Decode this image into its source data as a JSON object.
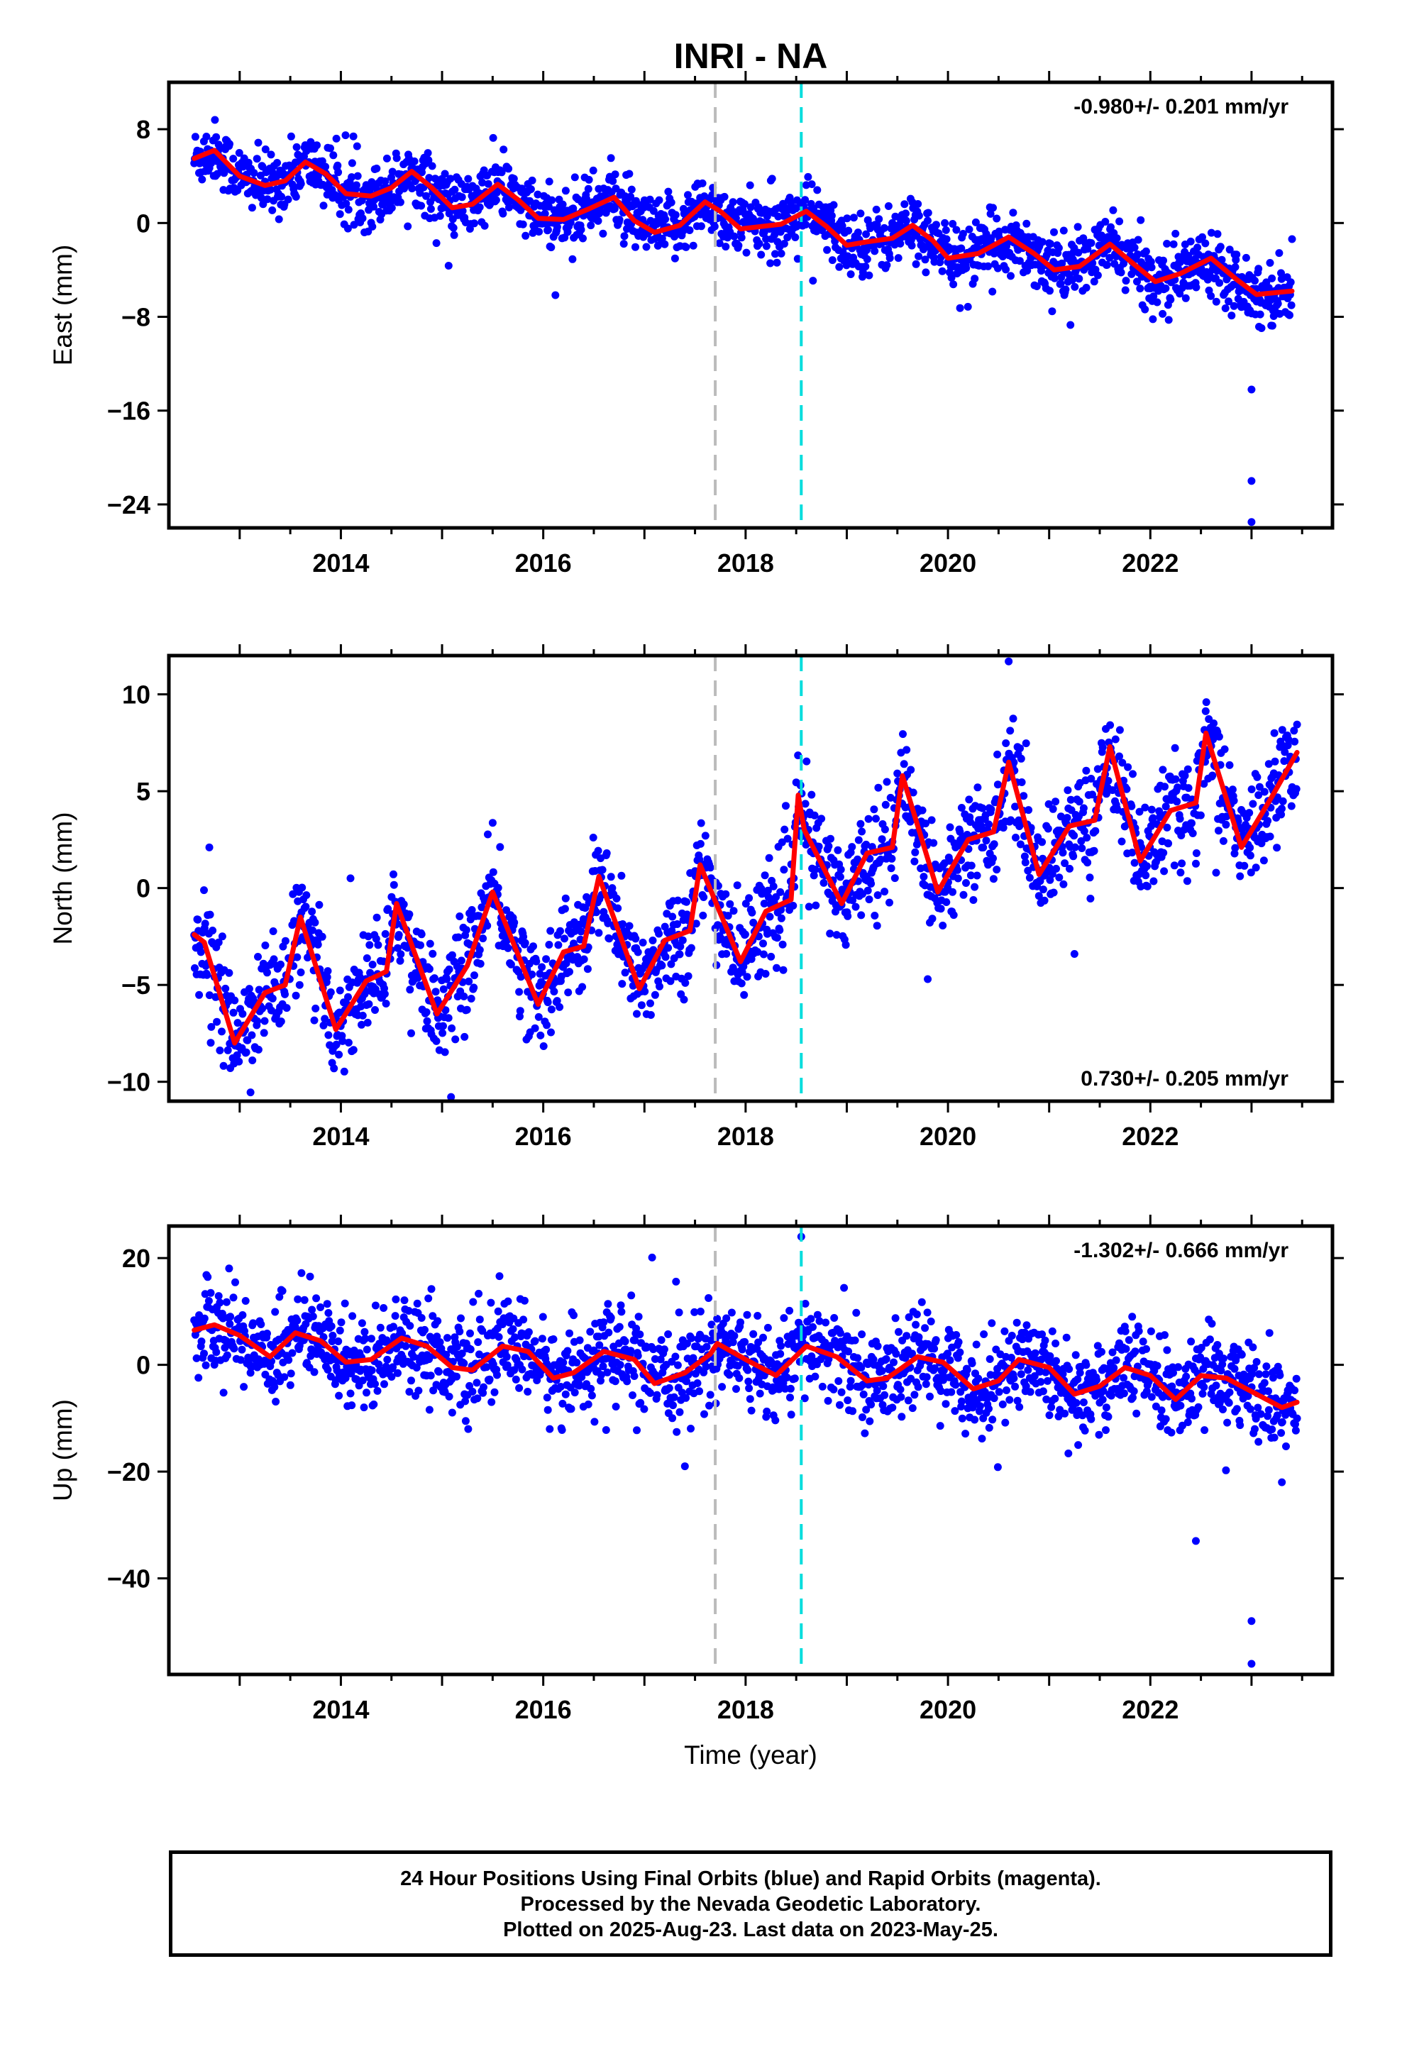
{
  "chart_data": {
    "type": "scatter",
    "title": "INRI - NA",
    "xlabel": "Time (year)",
    "x_tick_labels": [
      "2014",
      "2016",
      "2018",
      "2020",
      "2022"
    ],
    "xlim": [
      2012.3,
      2023.8
    ],
    "markers": [
      {
        "name": "gray-dashed-line",
        "x": 2017.7,
        "color": "#bbbbbb"
      },
      {
        "name": "cyan-dashed-line",
        "x": 2018.55,
        "color": "#00dddd"
      }
    ],
    "colors": {
      "points": "#0000ff",
      "model": "#ff0000"
    },
    "panels": [
      {
        "ylabel": "East (mm)",
        "rate_label": "-0.980+/- 0.201 mm/yr",
        "rate_position": "top-right",
        "ylim": [
          -26,
          12
        ],
        "yticks": [
          8,
          0,
          -8,
          -16,
          -24
        ],
        "y_tick_labels": [
          "8",
          "0",
          "−8",
          "−16",
          "−24"
        ],
        "model": {
          "x": [
            2012.55,
            2012.75,
            2013.0,
            2013.25,
            2013.45,
            2013.65,
            2013.85,
            2014.05,
            2014.3,
            2014.5,
            2014.7,
            2014.9,
            2015.1,
            2015.3,
            2015.55,
            2015.75,
            2015.95,
            2016.2,
            2016.45,
            2016.7,
            2016.9,
            2017.1,
            2017.35,
            2017.6,
            2017.75,
            2017.95,
            2018.15,
            2018.35,
            2018.6,
            2018.8,
            2019.0,
            2019.2,
            2019.45,
            2019.65,
            2019.85,
            2020.0,
            2020.3,
            2020.6,
            2020.85,
            2021.05,
            2021.3,
            2021.6,
            2021.85,
            2022.05,
            2022.3,
            2022.6,
            2022.85,
            2023.05,
            2023.4
          ],
          "y": [
            5.5,
            6.2,
            4.0,
            3.2,
            3.6,
            5.2,
            4.2,
            2.5,
            2.3,
            3.0,
            4.4,
            3.0,
            1.3,
            1.6,
            3.3,
            2.0,
            0.4,
            0.3,
            1.2,
            2.2,
            0.2,
            -0.8,
            -0.2,
            1.8,
            1.0,
            -0.5,
            -0.3,
            -0.1,
            1.0,
            -0.3,
            -1.9,
            -1.6,
            -1.3,
            -0.2,
            -1.5,
            -3.0,
            -2.6,
            -1.2,
            -2.6,
            -4.0,
            -3.7,
            -1.8,
            -3.6,
            -5.0,
            -4.3,
            -3.0,
            -4.8,
            -6.1,
            -5.8
          ]
        },
        "outliers": [
          {
            "x": 2023.0,
            "y": -14.2
          },
          {
            "x": 2023.0,
            "y": -22.0
          },
          {
            "x": 2023.0,
            "y": -25.5
          }
        ]
      },
      {
        "ylabel": "North (mm)",
        "rate_label": "0.730+/- 0.205 mm/yr",
        "rate_position": "bottom-right",
        "ylim": [
          -11,
          12
        ],
        "yticks": [
          10,
          5,
          0,
          -5,
          -10
        ],
        "y_tick_labels": [
          "10",
          "5",
          "0",
          "−5",
          "−10"
        ],
        "model": {
          "x": [
            2012.55,
            2012.65,
            2012.95,
            2013.25,
            2013.45,
            2013.6,
            2013.95,
            2014.25,
            2014.45,
            2014.55,
            2014.95,
            2015.25,
            2015.5,
            2015.95,
            2016.2,
            2016.4,
            2016.55,
            2016.95,
            2017.2,
            2017.45,
            2017.55,
            2017.95,
            2018.2,
            2018.45,
            2018.52,
            2018.58,
            2018.95,
            2019.2,
            2019.45,
            2019.55,
            2019.9,
            2020.2,
            2020.45,
            2020.6,
            2020.9,
            2021.2,
            2021.45,
            2021.6,
            2021.9,
            2022.2,
            2022.45,
            2022.55,
            2022.9,
            2023.2,
            2023.45
          ],
          "y": [
            -2.4,
            -2.8,
            -8.0,
            -5.4,
            -5.0,
            -1.5,
            -7.3,
            -4.8,
            -4.3,
            -0.8,
            -6.5,
            -4.0,
            -0.2,
            -6.0,
            -3.3,
            -3.0,
            0.6,
            -5.2,
            -2.7,
            -2.2,
            1.2,
            -3.8,
            -1.2,
            -0.6,
            4.8,
            3.0,
            -0.8,
            1.8,
            2.1,
            5.8,
            -0.2,
            2.5,
            2.9,
            6.5,
            0.7,
            3.2,
            3.5,
            7.3,
            1.4,
            4.0,
            4.4,
            8.0,
            2.1,
            4.7,
            7.0
          ]
        },
        "outliers": [
          {
            "x": 2019.8,
            "y": -4.7
          },
          {
            "x": 2020.6,
            "y": 11.7
          },
          {
            "x": 2021.25,
            "y": -3.4
          },
          {
            "x": 2012.7,
            "y": 2.1
          }
        ]
      },
      {
        "ylabel": "Up (mm)",
        "rate_label": "-1.302+/- 0.666 mm/yr",
        "rate_position": "top-right",
        "ylim": [
          -58,
          26
        ],
        "yticks": [
          20,
          0,
          -20,
          -40
        ],
        "y_tick_labels": [
          "20",
          "0",
          "−20",
          "−40"
        ],
        "model": {
          "x": [
            2012.55,
            2012.75,
            2013.0,
            2013.3,
            2013.55,
            2013.8,
            2014.05,
            2014.3,
            2014.6,
            2014.85,
            2015.1,
            2015.3,
            2015.6,
            2015.85,
            2016.1,
            2016.3,
            2016.6,
            2016.9,
            2017.1,
            2017.4,
            2017.65,
            2017.72,
            2018.0,
            2018.3,
            2018.6,
            2018.9,
            2019.2,
            2019.4,
            2019.7,
            2019.95,
            2020.25,
            2020.5,
            2020.7,
            2021.0,
            2021.25,
            2021.5,
            2021.75,
            2022.0,
            2022.25,
            2022.5,
            2022.75,
            2023.0,
            2023.3,
            2023.45
          ],
          "y": [
            6.5,
            7.5,
            5.5,
            1.5,
            6.0,
            4.5,
            0.5,
            1.0,
            5.0,
            3.5,
            -0.5,
            -1.0,
            3.5,
            2.5,
            -2.5,
            -1.5,
            2.5,
            1.0,
            -3.5,
            -1.5,
            2.0,
            4.0,
            1.0,
            -2.0,
            3.5,
            1.5,
            -3.0,
            -2.5,
            1.5,
            0.5,
            -4.5,
            -3.0,
            1.0,
            -0.5,
            -5.5,
            -4.0,
            -0.5,
            -2.0,
            -6.5,
            -2.0,
            -2.5,
            -5.0,
            -8.0,
            -7.0
          ]
        },
        "outliers": [
          {
            "x": 2022.45,
            "y": -33.0
          },
          {
            "x": 2023.0,
            "y": -48.0
          },
          {
            "x": 2023.0,
            "y": -56.0
          },
          {
            "x": 2023.3,
            "y": -22.0
          },
          {
            "x": 2018.55,
            "y": 24.0
          },
          {
            "x": 2017.4,
            "y": -19.0
          }
        ]
      }
    ]
  },
  "footer": {
    "line1": "24 Hour Positions Using Final Orbits (blue) and Rapid Orbits (magenta).",
    "line2": "Processed by the Nevada Geodetic Laboratory.",
    "line3": "Plotted on 2025-Aug-23. Last data on 2023-May-25."
  }
}
